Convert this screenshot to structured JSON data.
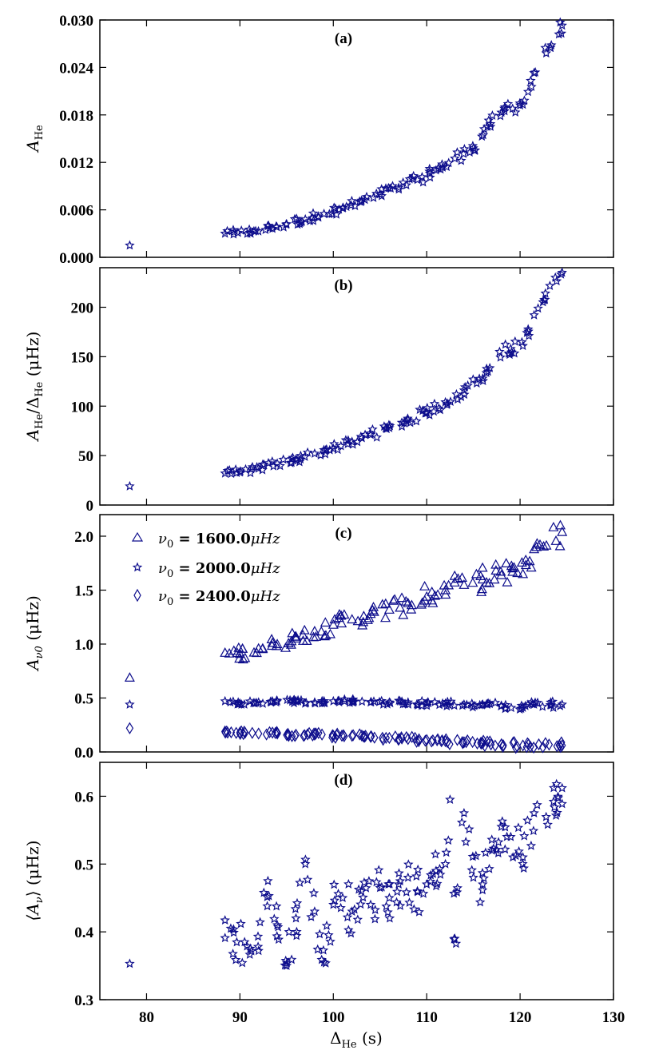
{
  "chart_data": [
    {
      "type": "scatter",
      "title": "(a)",
      "ylabel_main": "A",
      "ylabel_sub": "He",
      "xlim": [
        75,
        130
      ],
      "ylim": [
        0.0,
        0.03
      ],
      "yticks": [
        "0.000",
        "0.006",
        "0.012",
        "0.018",
        "0.024",
        "0.030"
      ],
      "ytick_values": [
        0.0,
        0.006,
        0.012,
        0.018,
        0.024,
        0.03
      ],
      "marker": "star",
      "points": [
        [
          78.2,
          0.0015
        ],
        [
          88.4,
          0.003
        ],
        [
          89.8,
          0.0031
        ],
        [
          91.5,
          0.0033
        ],
        [
          93.2,
          0.0037
        ],
        [
          95.0,
          0.0042
        ],
        [
          97.0,
          0.0048
        ],
        [
          99.0,
          0.0055
        ],
        [
          101.0,
          0.0062
        ],
        [
          103.0,
          0.007
        ],
        [
          105.0,
          0.008
        ],
        [
          107.0,
          0.0088
        ],
        [
          109.0,
          0.0098
        ],
        [
          111.0,
          0.011
        ],
        [
          113.0,
          0.0125
        ],
        [
          115.0,
          0.0138
        ],
        [
          116.5,
          0.0165
        ],
        [
          118.0,
          0.0183
        ],
        [
          119.2,
          0.0188
        ],
        [
          120.3,
          0.0193
        ],
        [
          121.5,
          0.0233
        ],
        [
          124.5,
          0.0293
        ]
      ]
    },
    {
      "type": "scatter",
      "title": "(b)",
      "ylabel_main": "A",
      "ylabel_sub": "He",
      "ylabel_rest": "/Δ",
      "ylabel_sub2": "He",
      "ylabel_units": " (μHz)",
      "xlim": [
        75,
        130
      ],
      "ylim": [
        0,
        240
      ],
      "yticks": [
        "0",
        "50",
        "100",
        "150",
        "200"
      ],
      "ytick_values": [
        0,
        50,
        100,
        150,
        200
      ],
      "marker": "star",
      "points": [
        [
          78.2,
          19
        ],
        [
          88.4,
          32
        ],
        [
          90.0,
          33
        ],
        [
          92.0,
          37
        ],
        [
          94.0,
          42
        ],
        [
          96.0,
          46
        ],
        [
          98.0,
          52
        ],
        [
          100.0,
          57
        ],
        [
          102.0,
          64
        ],
        [
          104.0,
          71
        ],
        [
          106.0,
          78
        ],
        [
          108.0,
          86
        ],
        [
          110.0,
          94
        ],
        [
          112.0,
          104
        ],
        [
          114.0,
          116
        ],
        [
          116.0,
          128
        ],
        [
          117.8,
          155
        ],
        [
          119.0,
          158
        ],
        [
          120.3,
          161
        ],
        [
          121.5,
          192
        ],
        [
          124.5,
          235
        ]
      ]
    },
    {
      "type": "scatter",
      "title": "(c)",
      "ylabel_main": "A",
      "ylabel_sub": "ν0",
      "ylabel_units": " (μHz)",
      "xlim": [
        75,
        130
      ],
      "ylim": [
        0.0,
        2.2
      ],
      "yticks": [
        "0.0",
        "0.5",
        "1.0",
        "1.5",
        "2.0"
      ],
      "ytick_values": [
        0.0,
        0.5,
        1.0,
        1.5,
        2.0
      ],
      "legend": {
        "placement": "top-left",
        "entries": [
          {
            "prefix": "ν",
            "sub": "0",
            "value": " = 1600.0",
            "unit": "μHz",
            "marker": "triangle"
          },
          {
            "prefix": "ν",
            "sub": "0",
            "value": " = 2000.0",
            "unit": "μHz",
            "marker": "star"
          },
          {
            "prefix": "ν",
            "sub": "0",
            "value": " = 2400.0",
            "unit": "μHz",
            "marker": "diamond"
          }
        ]
      },
      "series": [
        {
          "name": "1600.0 μHz",
          "marker": "triangle",
          "points": [
            [
              78.2,
              0.69
            ],
            [
              88.4,
              0.92
            ],
            [
              90.0,
              0.91
            ],
            [
              92.0,
              0.96
            ],
            [
              94.0,
              1.0
            ],
            [
              96.0,
              1.07
            ],
            [
              98.0,
              1.12
            ],
            [
              100.0,
              1.18
            ],
            [
              102.0,
              1.23
            ],
            [
              104.0,
              1.28
            ],
            [
              106.0,
              1.32
            ],
            [
              108.0,
              1.38
            ],
            [
              110.0,
              1.44
            ],
            [
              112.0,
              1.5
            ],
            [
              114.0,
              1.55
            ],
            [
              116.0,
              1.6
            ],
            [
              118.0,
              1.64
            ],
            [
              119.2,
              1.67
            ],
            [
              120.3,
              1.65
            ],
            [
              121.5,
              1.88
            ],
            [
              124.5,
              2.04
            ]
          ]
        },
        {
          "name": "2000.0 μHz",
          "marker": "star",
          "points": [
            [
              78.2,
              0.44
            ],
            [
              88.4,
              0.47
            ],
            [
              90.0,
              0.45
            ],
            [
              92.0,
              0.46
            ],
            [
              94.0,
              0.47
            ],
            [
              96.0,
              0.47
            ],
            [
              98.0,
              0.46
            ],
            [
              100.0,
              0.47
            ],
            [
              102.0,
              0.47
            ],
            [
              104.0,
              0.46
            ],
            [
              106.0,
              0.46
            ],
            [
              108.0,
              0.46
            ],
            [
              110.0,
              0.45
            ],
            [
              112.0,
              0.45
            ],
            [
              114.0,
              0.44
            ],
            [
              116.0,
              0.44
            ],
            [
              118.0,
              0.43
            ],
            [
              120.3,
              0.41
            ],
            [
              121.5,
              0.44
            ],
            [
              124.5,
              0.44
            ]
          ]
        },
        {
          "name": "2400.0 μHz",
          "marker": "diamond",
          "points": [
            [
              78.2,
              0.22
            ],
            [
              88.4,
              0.19
            ],
            [
              90.0,
              0.18
            ],
            [
              92.0,
              0.17
            ],
            [
              94.0,
              0.17
            ],
            [
              96.0,
              0.16
            ],
            [
              98.0,
              0.16
            ],
            [
              100.0,
              0.15
            ],
            [
              102.0,
              0.15
            ],
            [
              104.0,
              0.14
            ],
            [
              106.0,
              0.13
            ],
            [
              108.0,
              0.12
            ],
            [
              110.0,
              0.11
            ],
            [
              112.0,
              0.1
            ],
            [
              114.0,
              0.09
            ],
            [
              116.0,
              0.08
            ],
            [
              118.0,
              0.07
            ],
            [
              120.3,
              0.06
            ],
            [
              122.0,
              0.07
            ],
            [
              124.5,
              0.06
            ]
          ]
        }
      ]
    },
    {
      "type": "scatter",
      "title": "(d)",
      "ylabel_main": "⟨A",
      "ylabel_sub": "ν",
      "ylabel_rest": "⟩",
      "ylabel_units": " (μHz)",
      "xlabel_main": "Δ",
      "xlabel_sub": "He",
      "xlabel_units": " (s)",
      "xlim": [
        75,
        130
      ],
      "ylim": [
        0.3,
        0.65
      ],
      "yticks": [
        "0.3",
        "0.4",
        "0.5",
        "0.6"
      ],
      "ytick_values": [
        0.3,
        0.4,
        0.5,
        0.6
      ],
      "xticks": [
        "80",
        "90",
        "100",
        "110",
        "120",
        "130"
      ],
      "xtick_values": [
        80,
        90,
        100,
        110,
        120,
        130
      ],
      "marker": "star",
      "points": [
        [
          78.2,
          0.353
        ],
        [
          88.4,
          0.417
        ],
        [
          88.4,
          0.391
        ],
        [
          90.5,
          0.385
        ],
        [
          92.0,
          0.372
        ],
        [
          93.0,
          0.475
        ],
        [
          94.0,
          0.41
        ],
        [
          95.0,
          0.35
        ],
        [
          96.0,
          0.42
        ],
        [
          97.0,
          0.5
        ],
        [
          98.0,
          0.43
        ],
        [
          99.0,
          0.355
        ],
        [
          100.0,
          0.44
        ],
        [
          101.0,
          0.45
        ],
        [
          102.0,
          0.43
        ],
        [
          103.0,
          0.46
        ],
        [
          104.0,
          0.44
        ],
        [
          105.0,
          0.465
        ],
        [
          106.0,
          0.45
        ],
        [
          107.0,
          0.47
        ],
        [
          108.0,
          0.48
        ],
        [
          109.0,
          0.46
        ],
        [
          110.0,
          0.47
        ],
        [
          111.0,
          0.49
        ],
        [
          112.0,
          0.5
        ],
        [
          112.5,
          0.595
        ],
        [
          113.0,
          0.39
        ],
        [
          114.0,
          0.575
        ],
        [
          115.0,
          0.48
        ],
        [
          116.0,
          0.47
        ],
        [
          117.0,
          0.52
        ],
        [
          118.0,
          0.555
        ],
        [
          119.0,
          0.54
        ],
        [
          120.3,
          0.51
        ],
        [
          121.5,
          0.575
        ],
        [
          124.5,
          0.612
        ]
      ]
    }
  ]
}
